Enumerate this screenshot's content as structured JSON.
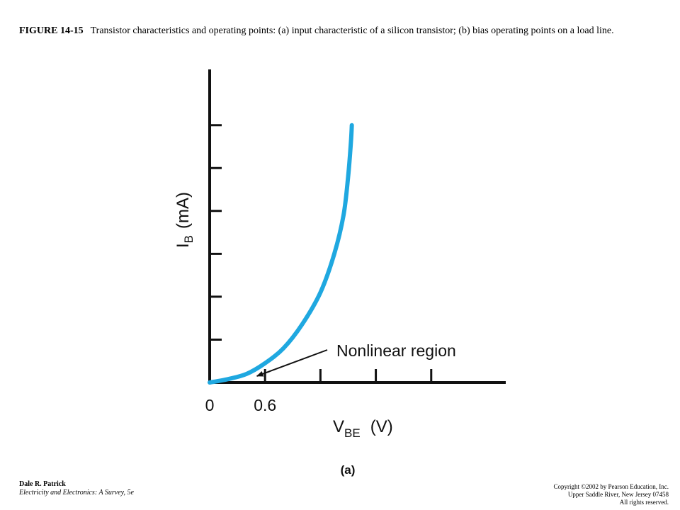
{
  "caption": {
    "label": "FIGURE 14-15",
    "text": "Transistor characteristics and operating points: (a) input characteristic of a silicon transistor; (b) bias operating points on a load line."
  },
  "chart_data": {
    "type": "line",
    "subfigure_label": "(a)",
    "ylabel_main": "I",
    "ylabel_sub": "B",
    "ylabel_unit": "(mA)",
    "xlabel_main": "V",
    "xlabel_sub": "BE",
    "xlabel_unit": "(V)",
    "x_tick_labels": [
      {
        "value": 0,
        "label": "0"
      },
      {
        "value": 0.6,
        "label": "0.6"
      }
    ],
    "x_ticks": [
      0.6,
      1.2,
      1.8,
      2.4
    ],
    "y_ticks": [
      1,
      2,
      3,
      4,
      5,
      6
    ],
    "xlim": [
      0,
      3.1
    ],
    "ylim": [
      0,
      7.3
    ],
    "series": [
      {
        "color": "#1fa8e0",
        "x": [
          0,
          0.2,
          0.4,
          0.6,
          0.8,
          1.0,
          1.2,
          1.35,
          1.45,
          1.5,
          1.53,
          1.54
        ],
        "y": [
          0,
          0.08,
          0.2,
          0.45,
          0.8,
          1.35,
          2.1,
          3.0,
          3.9,
          4.8,
          5.6,
          6.0
        ]
      }
    ],
    "annotation": {
      "text": "Nonlinear region",
      "arrow_to": {
        "x": 0.45,
        "y": 0.1
      }
    }
  },
  "footer": {
    "author": "Dale R. Patrick",
    "book": "Electricity and Electronics:  A Survey, 5e",
    "copyright_lines": [
      "Copyright ©2002 by Pearson Education, Inc.",
      "Upper Saddle River, New Jersey 07458",
      "All rights reserved."
    ]
  }
}
